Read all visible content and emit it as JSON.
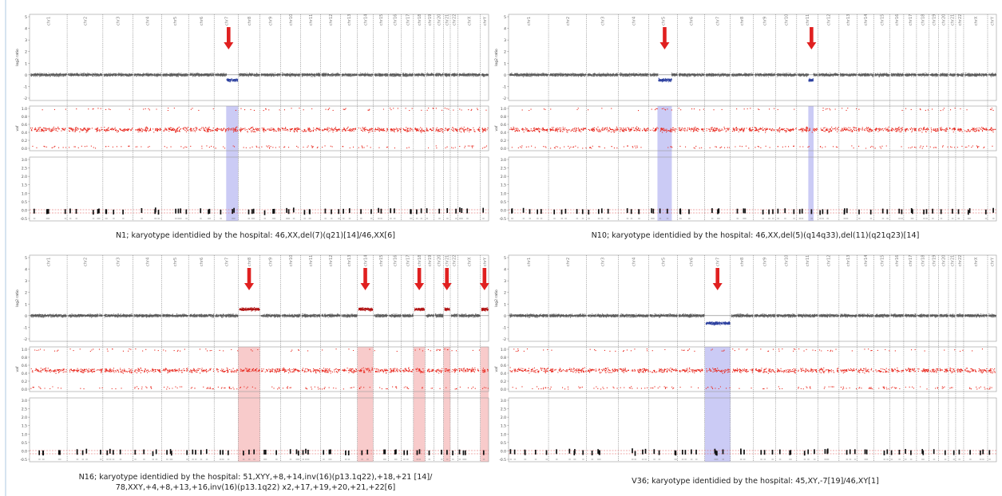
{
  "figure": {
    "panels": [
      {
        "id": "N1",
        "caption_lines": [
          "N1; karyotype identidied by the hospital: 46,XX,del(7)(q21)[14]/46,XX[6]"
        ],
        "chromosomes": [
          "chr1",
          "chr2",
          "chr3",
          "chr4",
          "chr5",
          "chr6",
          "chr7",
          "chr8",
          "chr9",
          "chr10",
          "chr11",
          "chr12",
          "chr13",
          "chr14",
          "chr15",
          "chr16",
          "chr17",
          "chr18",
          "chr19",
          "chr20",
          "chr21",
          "chr22",
          "chrX",
          "chrY"
        ],
        "axes": {
          "top": {
            "label": "log2 ratio",
            "ticks": [
              "5",
              "4",
              "3",
              "2",
              "1",
              "0",
              "-1",
              "-2"
            ]
          },
          "mid": {
            "label": "vaf",
            "ticks": [
              "1.0",
              "0.8",
              "0.6",
              "0.4",
              "0.2",
              "0.0"
            ]
          },
          "bot": {
            "ticks": [
              "3.0",
              "2.5",
              "2.0",
              "1.5",
              "1.0",
              "0.5",
              "0.0",
              "-0.5"
            ]
          }
        },
        "deviation_color": "#2a3e9e",
        "highlight_color": "#b9b9f2",
        "arrows": [
          {
            "chrom": "chr7",
            "frac": 0.6
          }
        ],
        "regions": [
          {
            "chrom": "chr7",
            "from": 0.5,
            "to": 1.0,
            "shift": -0.45
          }
        ]
      },
      {
        "id": "N10",
        "caption_lines": [
          "N10; karyotype identidied by the hospital: 46,XX,del(5)(q14q33),del(11)(q21q23)[14]"
        ],
        "chromosomes": [
          "chr1",
          "chr2",
          "chr3",
          "chr4",
          "chr5",
          "chr6",
          "chr7",
          "chr8",
          "chr9",
          "chr10",
          "chr11",
          "chr12",
          "chr13",
          "chr14",
          "chr15",
          "chr16",
          "chr17",
          "chr18",
          "chr19",
          "chr20",
          "chr21",
          "chr22",
          "chrX",
          "chrY"
        ],
        "axes": {
          "top": {
            "label": "log2 ratio",
            "ticks": [
              "5",
              "4",
              "3",
              "2",
              "1",
              "0",
              "-1",
              "-2"
            ]
          },
          "mid": {
            "label": "vaf",
            "ticks": [
              "1.0",
              "0.8",
              "0.6",
              "0.4",
              "0.2",
              "0.0"
            ]
          },
          "bot": {
            "ticks": [
              "3.0",
              "2.5",
              "2.0",
              "1.5",
              "1.0",
              "0.5",
              "0.0",
              "-0.5"
            ]
          }
        },
        "deviation_color": "#2a3e9e",
        "highlight_color": "#b9b9f2",
        "arrows": [
          {
            "chrom": "chr5",
            "frac": 0.55
          },
          {
            "chrom": "chr11",
            "frac": 0.7
          }
        ],
        "regions": [
          {
            "chrom": "chr5",
            "from": 0.3,
            "to": 0.8,
            "shift": -0.45
          },
          {
            "chrom": "chr11",
            "from": 0.55,
            "to": 0.8,
            "shift": -0.45
          }
        ]
      },
      {
        "id": "N16",
        "caption_lines": [
          "N16; karyotype identidied by the hospital:  51,XYY,+8,+14,inv(16)(p13.1q22),+18,+21  [14]/",
          "78,XXY,+4,+8,+13,+16,inv(16)(p13.1q22) x2,+17,+19,+20,+21,+22[6]"
        ],
        "chromosomes": [
          "chr1",
          "chr2",
          "chr3",
          "chr4",
          "chr5",
          "chr6",
          "chr7",
          "chr8",
          "chr9",
          "chr10",
          "chr11",
          "chr12",
          "chr13",
          "chr14",
          "chr15",
          "chr16",
          "chr17",
          "chr18",
          "chr19",
          "chr20",
          "chr21",
          "chr22",
          "chrX",
          "chrY"
        ],
        "axes": {
          "top": {
            "label": "log2 ratio",
            "ticks": [
              "5",
              "4",
              "3",
              "2",
              "1",
              "0",
              "-1",
              "-2"
            ]
          },
          "mid": {
            "label": "vaf",
            "ticks": [
              "1.0",
              "0.8",
              "0.6",
              "0.4",
              "0.2",
              "0.0"
            ]
          },
          "bot": {
            "ticks": [
              "3.0",
              "2.5",
              "2.0",
              "1.5",
              "1.0",
              "0.5",
              "0.0",
              "-0.5"
            ]
          }
        },
        "deviation_color": "#b01010",
        "highlight_color": "#f6b9b9",
        "arrows": [
          {
            "chrom": "chr8",
            "frac": 0.5
          },
          {
            "chrom": "chr14",
            "frac": 0.5
          },
          {
            "chrom": "chr18",
            "frac": 0.5
          },
          {
            "chrom": "chr21",
            "frac": 0.5
          },
          {
            "chrom": "chrY",
            "frac": 0.5
          }
        ],
        "regions": [
          {
            "chrom": "chr8",
            "from": 0.0,
            "to": 1.0,
            "shift": 0.55
          },
          {
            "chrom": "chr14",
            "from": 0.0,
            "to": 1.0,
            "shift": 0.55
          },
          {
            "chrom": "chr18",
            "from": 0.0,
            "to": 1.0,
            "shift": 0.55
          },
          {
            "chrom": "chr21",
            "from": 0.0,
            "to": 1.0,
            "shift": 0.55
          },
          {
            "chrom": "chrY",
            "from": 0.0,
            "to": 1.0,
            "shift": 0.55
          }
        ]
      },
      {
        "id": "V36",
        "caption_lines": [
          "V36; karyotype identidied by the hospital:  45,XY,-7[19]/46,XY[1]"
        ],
        "chromosomes": [
          "chr1",
          "chr2",
          "chr3",
          "chr4",
          "chr5",
          "chr6",
          "chr7",
          "chr8",
          "chr9",
          "chr10",
          "chr11",
          "chr12",
          "chr13",
          "chr14",
          "chr15",
          "chr16",
          "chr17",
          "chr18",
          "chr19",
          "chr20",
          "chr21",
          "chr22",
          "chrX",
          "chrY"
        ],
        "axes": {
          "top": {
            "label": "log2 ratio",
            "ticks": [
              "5",
              "4",
              "3",
              "2",
              "1",
              "0",
              "-1",
              "-2"
            ]
          },
          "mid": {
            "label": "vaf",
            "ticks": [
              "1.0",
              "0.8",
              "0.6",
              "0.4",
              "0.2",
              "0.0"
            ]
          },
          "bot": {
            "ticks": [
              "3.0",
              "2.5",
              "2.0",
              "1.5",
              "1.0",
              "0.5",
              "0.0",
              "-0.5"
            ]
          }
        },
        "deviation_color": "#2a3e9e",
        "highlight_color": "#b9b9f2",
        "arrows": [
          {
            "chrom": "chr7",
            "frac": 0.5
          }
        ],
        "regions": [
          {
            "chrom": "chr7",
            "from": 0.0,
            "to": 1.0,
            "shift": -0.65
          }
        ]
      }
    ]
  },
  "colors": {
    "dots": "#333333",
    "vaf_dots": "#e8281e",
    "arrow": "#e02020",
    "threshold": "#e05555",
    "separator": "#7a7a7a"
  }
}
